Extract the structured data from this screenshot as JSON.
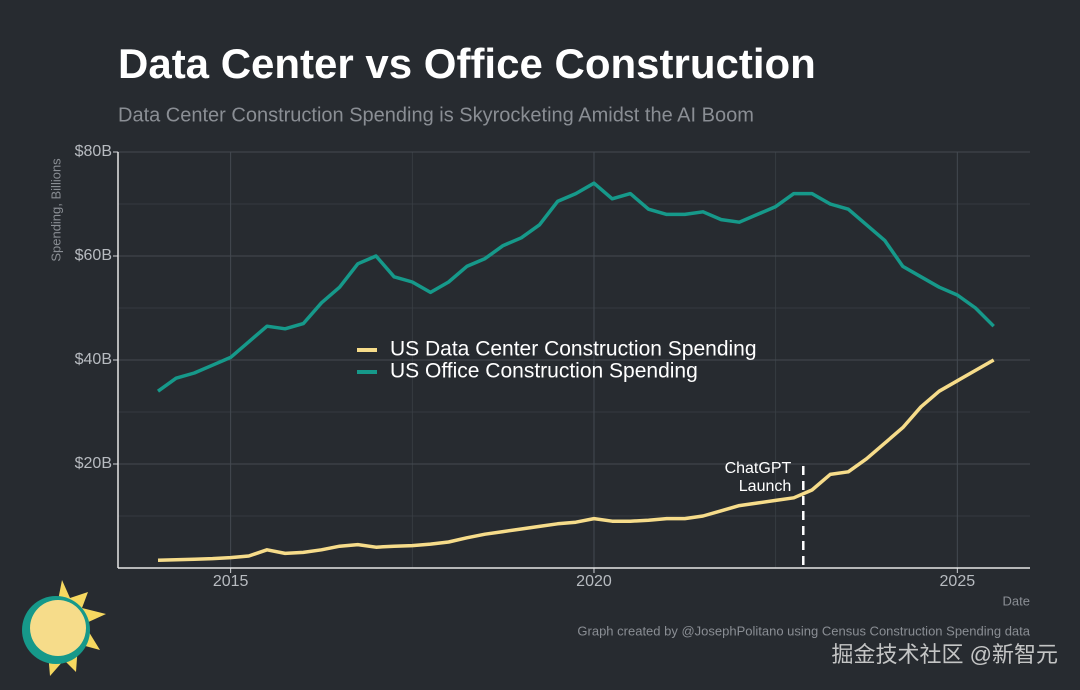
{
  "chart_data": {
    "type": "line",
    "title": "Data Center vs Office Construction",
    "subtitle": "Data Center Construction Spending is Skyrocketing Amidst the AI Boom",
    "y_label": "Spending, Billions",
    "x_label": "Date",
    "credit": "Graph created by @JosephPolitano using Census Construction Spending data",
    "watermark": "掘金技术社区 @新智元",
    "x": [
      2014,
      2014.25,
      2014.5,
      2014.75,
      2015,
      2015.25,
      2015.5,
      2015.75,
      2016,
      2016.25,
      2016.5,
      2016.75,
      2017,
      2017.25,
      2017.5,
      2017.75,
      2018,
      2018.25,
      2018.5,
      2018.75,
      2019,
      2019.25,
      2019.5,
      2019.75,
      2020,
      2020.25,
      2020.5,
      2020.75,
      2021,
      2021.25,
      2021.5,
      2021.75,
      2022,
      2022.25,
      2022.5,
      2022.75,
      2023,
      2023.25,
      2023.5,
      2023.75,
      2024,
      2024.25,
      2024.5,
      2024.75,
      2025,
      2025.25,
      2025.5
    ],
    "series": [
      {
        "name": "US Data Center Construction Spending",
        "color": "#f6dc8a",
        "values": [
          1.5,
          1.6,
          1.7,
          1.8,
          2,
          2.3,
          3.5,
          2.8,
          3,
          3.5,
          4.2,
          4.5,
          4,
          4.2,
          4.3,
          4.6,
          5,
          5.8,
          6.5,
          7,
          7.5,
          8,
          8.5,
          8.8,
          9.5,
          9,
          9,
          9.2,
          9.5,
          9.5,
          10,
          11,
          12,
          12.5,
          13,
          13.5,
          15,
          18,
          18.5,
          21,
          24,
          27,
          31,
          34,
          36,
          38,
          40
        ]
      },
      {
        "name": "US Office Construction Spending",
        "color": "#16998a",
        "values": [
          34,
          36.5,
          37.5,
          39,
          40.5,
          43.5,
          46.5,
          46,
          47,
          51,
          54,
          58.5,
          60,
          56,
          55,
          53,
          55,
          58,
          59.5,
          62,
          63.5,
          66,
          70.5,
          72,
          74,
          71,
          72,
          69,
          68,
          68,
          68.5,
          67,
          66.5,
          68,
          69.5,
          72,
          72,
          70,
          69,
          66,
          63,
          58,
          56,
          54,
          52.5,
          50,
          46.5
        ]
      }
    ],
    "xlim": [
      2013.45,
      2026
    ],
    "xticks": [
      2015,
      2020,
      2025
    ],
    "x_minor_ticks": [
      2017.5,
      2022.5
    ],
    "ylim": [
      0,
      80
    ],
    "yticks": [
      {
        "value": 20,
        "label": "$20B"
      },
      {
        "value": 40,
        "label": "$40B"
      },
      {
        "value": 60,
        "label": "$60B"
      },
      {
        "value": 80,
        "label": "$80B"
      }
    ],
    "y_minor_ticks": [
      10,
      30,
      50,
      70
    ],
    "grid": true,
    "legend": "center",
    "annotation": {
      "x": 2022.88,
      "lines": [
        "ChatGPT",
        "Launch"
      ]
    }
  }
}
